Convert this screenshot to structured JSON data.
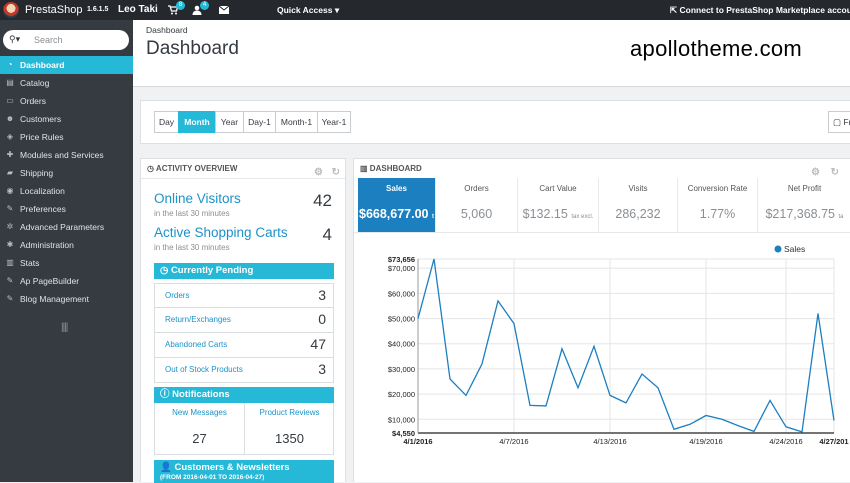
{
  "topbar": {
    "brand": "PrestaShop",
    "version": "1.6.1.5",
    "user": "Leo Taki",
    "orders_badge": "8",
    "customers_badge": "4",
    "quick_access": "Quick Access",
    "connect": "Connect to PrestaShop Marketplace account"
  },
  "sidebar": {
    "search_placeholder": "Search",
    "items": [
      {
        "label": "Dashboard",
        "icon": "dashboard-icon",
        "active": true
      },
      {
        "label": "Catalog",
        "icon": "catalog-icon"
      },
      {
        "label": "Orders",
        "icon": "orders-icon"
      },
      {
        "label": "Customers",
        "icon": "customers-icon"
      },
      {
        "label": "Price Rules",
        "icon": "tag-icon"
      },
      {
        "label": "Modules and Services",
        "icon": "puzzle-icon"
      },
      {
        "label": "Shipping",
        "icon": "truck-icon"
      },
      {
        "label": "Localization",
        "icon": "globe-icon"
      },
      {
        "label": "Preferences",
        "icon": "wrench-icon"
      },
      {
        "label": "Advanced Parameters",
        "icon": "cogs-icon"
      },
      {
        "label": "Administration",
        "icon": "cog-icon"
      },
      {
        "label": "Stats",
        "icon": "bar-chart-icon"
      },
      {
        "label": "Ap PageBuilder",
        "icon": "pencil-icon"
      },
      {
        "label": "Blog Management",
        "icon": "pencil-icon"
      }
    ]
  },
  "header": {
    "breadcrumb": "Dashboard",
    "title": "Dashboard",
    "watermark": "apollotheme.com"
  },
  "toolbar": {
    "periods": [
      "Day",
      "Month",
      "Year",
      "Day-1",
      "Month-1",
      "Year-1"
    ],
    "active_period": "Month",
    "from_label": "Fr"
  },
  "activity": {
    "title": "ACTIVITY OVERVIEW",
    "online_visitors_label": "Online Visitors",
    "online_visitors_sub": "in the last 30 minutes",
    "online_visitors_value": "42",
    "active_carts_label": "Active Shopping Carts",
    "active_carts_sub": "in the last 30 minutes",
    "active_carts_value": "4",
    "pending_title": "Currently Pending",
    "pending": [
      {
        "label": "Orders",
        "value": "3"
      },
      {
        "label": "Return/Exchanges",
        "value": "0"
      },
      {
        "label": "Abandoned Carts",
        "value": "47"
      },
      {
        "label": "Out of Stock Products",
        "value": "3"
      }
    ],
    "notifications_title": "Notifications",
    "new_messages_label": "New Messages",
    "new_messages_value": "27",
    "product_reviews_label": "Product Reviews",
    "product_reviews_value": "1350",
    "customers_title": "Customers & Newsletters",
    "customers_range": "(FROM 2016-04-01 TO 2016-04-27)"
  },
  "dashboard": {
    "title": "DASHBOARD",
    "kpis": [
      {
        "label": "Sales",
        "value": "$668,677.00",
        "suffix": "t"
      },
      {
        "label": "Orders",
        "value": "5,060",
        "suffix": ""
      },
      {
        "label": "Cart Value",
        "value": "$132.15",
        "suffix": "tax excl."
      },
      {
        "label": "Visits",
        "value": "286,232",
        "suffix": ""
      },
      {
        "label": "Conversion Rate",
        "value": "1.77%",
        "suffix": ""
      },
      {
        "label": "Net Profit",
        "value": "$217,368.75",
        "suffix": "ta"
      }
    ]
  },
  "colors": {
    "accent": "#25b9d7",
    "sidebar": "#363a41",
    "topbar": "#25292e",
    "series": "#1b7fc0"
  },
  "chart_data": {
    "type": "line",
    "legend": [
      "Sales"
    ],
    "legend_position": "top-right",
    "ylim": [
      4550,
      73656
    ],
    "y_ticks": [
      4550,
      10000,
      20000,
      30000,
      40000,
      50000,
      60000,
      70000,
      73656
    ],
    "y_tick_labels": [
      "$4,550",
      "$10,000",
      "$20,000",
      "$30,000",
      "$40,000",
      "$50,000",
      "$60,000",
      "$70,000",
      "$73,656"
    ],
    "x_tick_labels": [
      "4/1/2016",
      "4/7/2016",
      "4/13/2016",
      "4/19/2016",
      "4/24/2016",
      "4/27/201"
    ],
    "x_tick_days": [
      1,
      7,
      13,
      19,
      24,
      27
    ],
    "xlim": [
      1,
      27
    ],
    "grid": true,
    "series": [
      {
        "name": "Sales",
        "x": [
          1,
          2,
          3,
          4,
          5,
          6,
          7,
          8,
          9,
          10,
          11,
          12,
          13,
          14,
          15,
          16,
          17,
          18,
          19,
          20,
          21,
          22,
          23,
          24,
          25,
          26,
          27
        ],
        "values": [
          50000,
          73656,
          26000,
          19500,
          32000,
          57000,
          48000,
          15500,
          15300,
          38000,
          22500,
          39000,
          19500,
          16500,
          28000,
          22500,
          6000,
          8000,
          11500,
          10000,
          7500,
          5200,
          17500,
          7000,
          5000,
          52000,
          9500
        ]
      }
    ]
  }
}
